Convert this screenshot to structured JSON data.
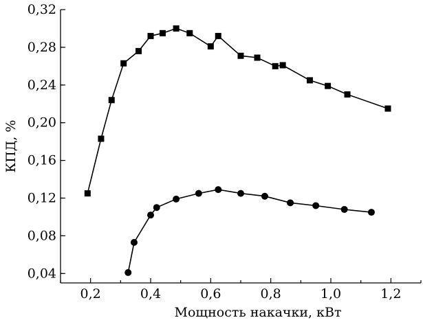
{
  "chart_data": {
    "type": "line",
    "xlabel": "Мощность накачки, кВт",
    "ylabel": "КПД, %",
    "xlim": [
      0.1,
      1.3
    ],
    "ylim": [
      0.03,
      0.32
    ],
    "xticks": [
      0.2,
      0.4,
      0.6,
      0.8,
      1.0,
      1.2
    ],
    "xtick_labels": [
      "0,2",
      "0,4",
      "0,6",
      "0,8",
      "1,0",
      "1,2"
    ],
    "yticks": [
      0.04,
      0.08,
      0.12,
      0.16,
      0.2,
      0.24,
      0.28,
      0.32
    ],
    "ytick_labels": [
      "0,04",
      "0,08",
      "0,12",
      "0,16",
      "0,20",
      "0,24",
      "0,28",
      "0,32"
    ],
    "grid": false,
    "series": [
      {
        "marker": "square",
        "color": "#000000",
        "x": [
          0.19,
          0.235,
          0.27,
          0.31,
          0.36,
          0.4,
          0.44,
          0.485,
          0.53,
          0.6,
          0.625,
          0.7,
          0.755,
          0.815,
          0.84,
          0.93,
          0.99,
          1.055,
          1.19
        ],
        "y": [
          0.125,
          0.183,
          0.224,
          0.263,
          0.276,
          0.292,
          0.295,
          0.3,
          0.295,
          0.281,
          0.292,
          0.271,
          0.269,
          0.26,
          0.261,
          0.245,
          0.239,
          0.23,
          0.215
        ]
      },
      {
        "marker": "circle",
        "color": "#000000",
        "x": [
          0.325,
          0.345,
          0.4,
          0.42,
          0.485,
          0.56,
          0.625,
          0.7,
          0.78,
          0.865,
          0.95,
          1.045,
          1.135
        ],
        "y": [
          0.041,
          0.073,
          0.102,
          0.11,
          0.119,
          0.125,
          0.129,
          0.125,
          0.122,
          0.115,
          0.112,
          0.108,
          0.105
        ]
      }
    ]
  }
}
